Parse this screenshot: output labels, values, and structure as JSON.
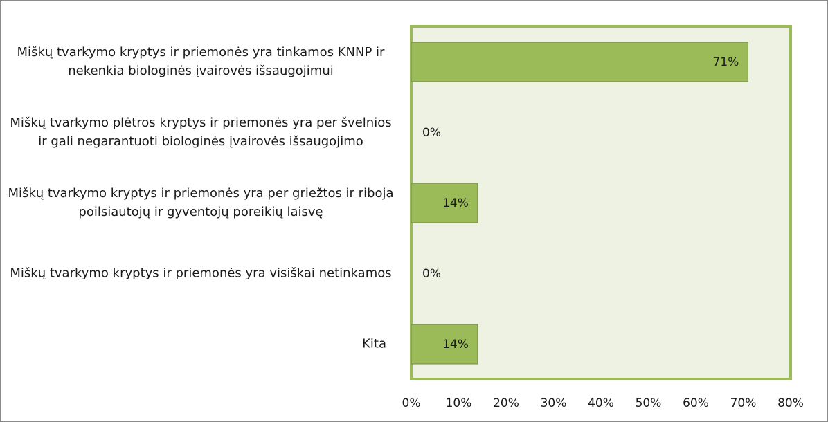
{
  "chart_data": {
    "type": "bar",
    "orientation": "horizontal",
    "categories": [
      "Miškų tvarkymo kryptys ir priemonės yra tinkamos KNNP ir nekenkia biologinės įvairovės išsaugojimui",
      "Miškų tvarkymo plėtros kryptys ir priemonės yra per švelnios ir gali negarantuoti biologinės įvairovės išsaugojimo",
      "Miškų tvarkymo kryptys ir priemonės yra per griežtos ir riboja poilsiautojų ir gyventojų poreikių laisvę",
      "Miškų tvarkymo kryptys ir priemonės yra visiškai netinkamos",
      "Kita"
    ],
    "values": [
      71,
      0,
      14,
      0,
      14
    ],
    "value_labels": [
      "71%",
      "0%",
      "14%",
      "0%",
      "14%"
    ],
    "color": "#9bbb59",
    "xlim": [
      0,
      80
    ],
    "xticks": [
      {
        "value": 0,
        "label": "0%"
      },
      {
        "value": 10,
        "label": "10%"
      },
      {
        "value": 20,
        "label": "20%"
      },
      {
        "value": 30,
        "label": "30%"
      },
      {
        "value": 40,
        "label": "40%"
      },
      {
        "value": 50,
        "label": "50%"
      },
      {
        "value": 60,
        "label": "60%"
      },
      {
        "value": 70,
        "label": "70%"
      },
      {
        "value": 80,
        "label": "80%"
      }
    ],
    "grid": false
  }
}
